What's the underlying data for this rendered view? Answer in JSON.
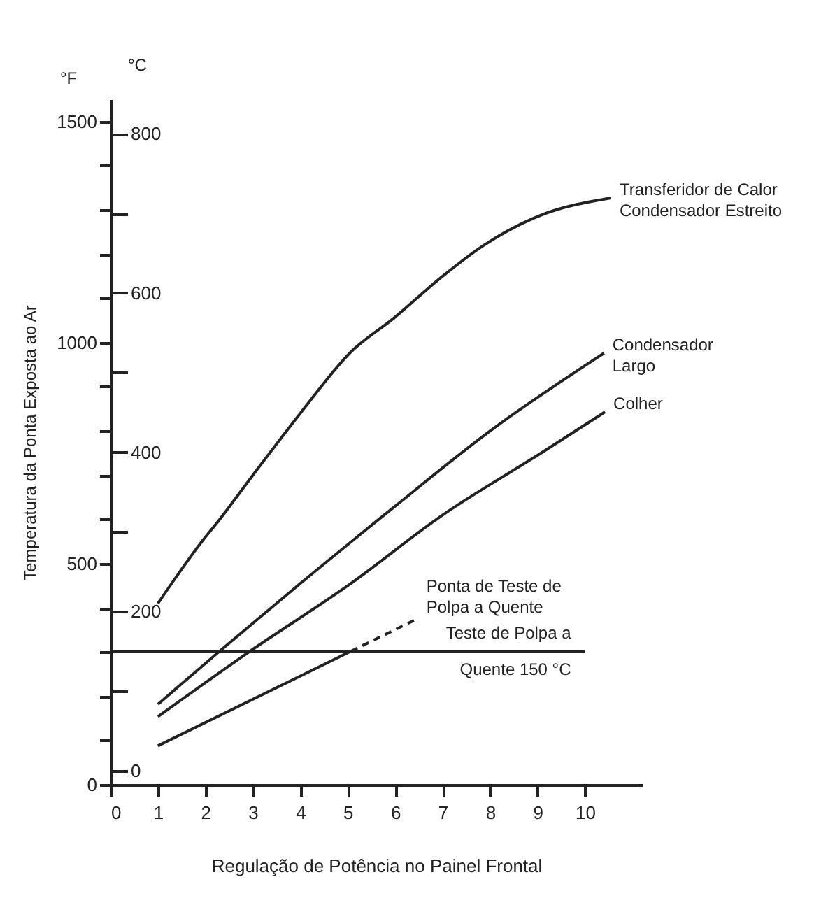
{
  "chart_data": {
    "type": "line",
    "xlabel": "Regulação de Potência no Painel Frontal",
    "ylabel": "Temperatura da Ponta Exposta ao Ar",
    "y2label": "°C",
    "annotations": [
      "°F"
    ],
    "xlim": [
      0,
      11.2
    ],
    "xticks": [
      0,
      1,
      2,
      3,
      4,
      5,
      6,
      7,
      8,
      9,
      10
    ],
    "ylim": [
      0,
      1550
    ],
    "yticks": [
      0,
      {
        "value": 100,
        "label": null
      },
      {
        "value": 200,
        "label": null
      },
      {
        "value": 300,
        "label": null
      },
      {
        "value": 400,
        "label": null
      },
      500,
      {
        "value": 600,
        "label": null
      },
      {
        "value": 700,
        "label": null
      },
      {
        "value": 800,
        "label": null
      },
      {
        "value": 900,
        "label": null
      },
      1000,
      {
        "value": 1100,
        "label": null
      },
      {
        "value": 1200,
        "label": null
      },
      {
        "value": 1300,
        "label": null
      },
      {
        "value": 1400,
        "label": null
      },
      1500
    ],
    "y2lim": [
      -17.8,
      843.3
    ],
    "y2ticks": [
      0,
      {
        "value": 100,
        "label": null
      },
      200,
      {
        "value": 300,
        "label": null
      },
      400,
      {
        "value": 500,
        "label": null
      },
      600,
      {
        "value": 700,
        "label": null
      },
      800
    ],
    "grid": false,
    "marker": "none",
    "series": [
      {
        "name": "Transferidor de Calor\nCondensador Estreito",
        "color": "#222222",
        "line_style": "solid",
        "x": [
          1,
          1.94,
          2.3,
          3,
          4,
          5.07,
          5.98,
          7,
          7.84,
          9,
          10.55
        ],
        "values": [
          410,
          552,
          600,
          700,
          840,
          979,
          1056,
          1150,
          1218,
          1285,
          1327
        ]
      },
      {
        "name": "Condensador\nLargo",
        "color": "#222222",
        "line_style": "solid",
        "x": [
          1,
          2.3,
          4,
          6,
          8,
          10.4
        ],
        "values": [
          182,
          302,
          455,
          630,
          800,
          976
        ]
      },
      {
        "name": "Colher",
        "color": "#222222",
        "line_style": "solid",
        "x": [
          1,
          2.94,
          5,
          7,
          9,
          10.42
        ],
        "values": [
          154,
          302,
          450,
          610,
          745,
          843
        ]
      },
      {
        "color": "#222222",
        "line_style": "solid",
        "x": [
          1,
          5.07
        ],
        "values": [
          88,
          302
        ]
      },
      {
        "name": "Ponta de Teste de\nPolpa a Quente",
        "color": "#222222",
        "line_style": "dashed",
        "x": [
          5.07,
          6.48
        ],
        "values": [
          302,
          376
        ]
      }
    ],
    "ref_lines": [
      {
        "axis": "y2",
        "value": 150,
        "label": "Teste de Polpa a\nQuente 150 °C",
        "color": "#222222",
        "line_style": "solid"
      }
    ]
  }
}
